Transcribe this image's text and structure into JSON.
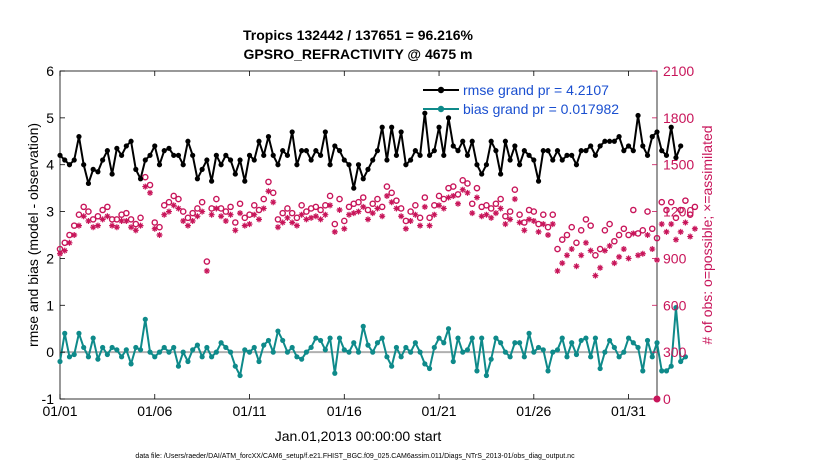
{
  "chart_data": {
    "type": "line",
    "title_line1": "Tropics 132442 / 137651 = 96.216%",
    "title_line2": "GPSRO_REFRACTIVITY @ 4675 m",
    "xlabel": "Jan.01,2013 00:00:00 start",
    "ylabel": "rmse and bias (model - observation)",
    "ylabel_right": "# of obs: o=possible; ×=assimilated",
    "xlim": [
      0,
      31.5
    ],
    "ylim": [
      -1,
      6
    ],
    "ylim_right": [
      0,
      2100
    ],
    "x_ticks": [
      0,
      5,
      10,
      15,
      20,
      25,
      30
    ],
    "x_tick_labels": [
      "01/01",
      "01/06",
      "01/11",
      "01/16",
      "01/21",
      "01/26",
      "01/31"
    ],
    "y_ticks": [
      -1,
      0,
      1,
      2,
      3,
      4,
      5,
      6
    ],
    "y_tick_labels": [
      "-1",
      "0",
      "1",
      "2",
      "3",
      "4",
      "5",
      "6"
    ],
    "y_right_ticks": [
      0,
      300,
      600,
      900,
      1200,
      1500,
      1800,
      2100
    ],
    "y_right_tick_labels": [
      "0",
      "300",
      "600",
      "900",
      "1200",
      "1500",
      "1800",
      "2100"
    ],
    "legend": {
      "rmse_label": "rmse grand pr = 4.2107",
      "bias_label": "bias grand pr = 0.017982"
    },
    "colors": {
      "rmse": "#000000",
      "bias": "#0e8a8a",
      "obs": "#c8155a",
      "zero_line": "#b0b0b0",
      "legend_text": "#1a4fd0"
    },
    "series": [
      {
        "name": "rmse",
        "x_start": 0,
        "x_step": 0.25,
        "values": [
          4.2,
          4.1,
          4.0,
          4.1,
          4.6,
          4.0,
          3.6,
          3.9,
          3.85,
          4.1,
          4.3,
          3.8,
          4.35,
          4.2,
          4.4,
          4.5,
          3.9,
          3.7,
          4.1,
          4.2,
          4.4,
          4.0,
          4.3,
          4.35,
          4.2,
          4.2,
          4.0,
          4.5,
          4.2,
          3.7,
          3.9,
          4.1,
          3.65,
          4.2,
          4.0,
          4.2,
          4.1,
          3.8,
          4.1,
          3.65,
          4.2,
          4.1,
          4.5,
          4.2,
          4.6,
          4.2,
          4.0,
          4.3,
          4.2,
          4.7,
          4.0,
          4.3,
          4.3,
          4.1,
          4.3,
          4.2,
          4.7,
          4.0,
          4.4,
          4.3,
          4.1,
          4.0,
          3.5,
          4.0,
          3.7,
          3.9,
          4.1,
          4.3,
          4.8,
          4.1,
          4.8,
          4.2,
          4.7,
          4.0,
          4.1,
          4.3,
          4.2,
          5.1,
          4.2,
          4.3,
          4.8,
          4.2,
          5.0,
          4.4,
          4.3,
          4.5,
          4.2,
          4.5,
          4.0,
          3.8,
          4.0,
          4.5,
          4.3,
          3.8,
          4.5,
          4.1,
          4.4,
          4.0,
          4.3,
          4.2,
          4.1,
          3.65,
          4.3,
          4.3,
          4.1,
          4.3,
          4.1,
          4.2,
          4.2,
          4.0,
          4.3,
          4.3,
          4.4,
          4.2,
          4.4,
          4.5,
          4.5,
          4.5,
          4.6,
          4.3,
          4.4,
          4.3,
          5.05,
          4.4,
          4.2,
          4.6,
          4.7,
          4.3,
          4.2,
          4.8,
          4.15,
          4.4
        ]
      },
      {
        "name": "bias",
        "x_start": 0,
        "x_step": 0.25,
        "values": [
          -0.2,
          0.4,
          -0.1,
          -0.05,
          0.4,
          0.1,
          -0.1,
          0.3,
          -0.15,
          0.1,
          -0.05,
          0.1,
          0.05,
          -0.1,
          0.05,
          -0.25,
          0.1,
          0.05,
          0.7,
          0.0,
          -0.1,
          0.0,
          0.1,
          0.0,
          0.1,
          -0.3,
          0.0,
          -0.2,
          0.05,
          0.15,
          -0.1,
          0.1,
          -0.1,
          0.0,
          0.2,
          0.1,
          0.0,
          -0.3,
          -0.5,
          0.05,
          0.0,
          0.1,
          -0.2,
          0.15,
          0.25,
          0.0,
          0.45,
          0.25,
          0.0,
          0.1,
          -0.1,
          -0.15,
          0.0,
          0.1,
          0.3,
          0.25,
          0.05,
          0.3,
          -0.45,
          0.3,
          0.05,
          0.0,
          0.2,
          0.0,
          0.55,
          0.15,
          0.0,
          0.2,
          0.3,
          -0.1,
          -0.3,
          0.1,
          -0.1,
          0.1,
          0.0,
          0.2,
          0.0,
          -0.25,
          -0.35,
          0.1,
          0.3,
          0.2,
          0.5,
          -0.2,
          0.3,
          0.0,
          0.05,
          0.3,
          -0.4,
          0.3,
          -0.5,
          -0.15,
          0.3,
          0.2,
          0.0,
          -0.1,
          0.2,
          0.2,
          -0.1,
          0.4,
          0.0,
          0.1,
          0.05,
          -0.4,
          0.0,
          0.05,
          0.3,
          -0.1,
          0.2,
          -0.05,
          0.25,
          0.3,
          -0.1,
          0.3,
          -0.35,
          0.0,
          0.25,
          0.1,
          -0.1,
          0.0,
          0.3,
          0.2,
          0.1,
          -0.4,
          0.25,
          -0.1,
          0.2,
          -0.4,
          -0.4,
          -0.3,
          0.95,
          -0.2,
          -0.1
        ]
      }
    ],
    "obs_possible": {
      "x_start": 0,
      "x_step": 0.25,
      "values": [
        960,
        1000,
        1050,
        1110,
        1180,
        1230,
        1200,
        1150,
        1170,
        1210,
        1230,
        1150,
        1150,
        1180,
        1190,
        1150,
        1120,
        1160,
        1420,
        1370,
        1130,
        1100,
        1240,
        1260,
        1300,
        1280,
        1200,
        1160,
        1190,
        1220,
        1260,
        880,
        1220,
        1280,
        1220,
        1200,
        1230,
        1130,
        1250,
        1160,
        1180,
        1240,
        1210,
        1280,
        1390,
        1320,
        1150,
        1190,
        1220,
        1190,
        1160,
        1240,
        1200,
        1220,
        1230,
        1210,
        1240,
        1300,
        1120,
        1280,
        1140,
        1230,
        1250,
        1260,
        1290,
        1210,
        1250,
        1280,
        1230,
        1360,
        1320,
        1270,
        1220,
        1140,
        1200,
        1240,
        1160,
        1290,
        1160,
        1240,
        1300,
        1280,
        1350,
        1360,
        1310,
        1400,
        1380,
        1250,
        1350,
        1230,
        1240,
        1220,
        1250,
        1280,
        1170,
        1200,
        1340,
        1180,
        1130,
        1210,
        1200,
        1120,
        1180,
        1100,
        1180,
        960,
        1020,
        1050,
        1100,
        1000,
        1080,
        1150,
        1110,
        920,
        960,
        1080,
        1120,
        1010,
        1050,
        1090,
        1050,
        1210,
        1060,
        1080,
        1200,
        1090,
        1030,
        1260,
        1210,
        1260,
        1160,
        1210,
        1270,
        1180,
        1230
      ]
    },
    "obs_assimilated": {
      "x_start": 0,
      "x_step": 0.25,
      "values": [
        930,
        950,
        1000,
        1050,
        1110,
        1170,
        1140,
        1100,
        1110,
        1150,
        1170,
        1110,
        1100,
        1140,
        1140,
        1100,
        1080,
        1110,
        1360,
        1320,
        1090,
        1050,
        1180,
        1200,
        1240,
        1220,
        1140,
        1110,
        1140,
        1170,
        1200,
        820,
        1180,
        1220,
        1170,
        1140,
        1180,
        1080,
        1190,
        1110,
        1120,
        1180,
        1150,
        1220,
        1330,
        1260,
        1100,
        1130,
        1160,
        1130,
        1110,
        1180,
        1150,
        1160,
        1170,
        1150,
        1180,
        1240,
        1070,
        1210,
        1090,
        1180,
        1190,
        1200,
        1230,
        1150,
        1190,
        1220,
        1170,
        1300,
        1260,
        1220,
        1170,
        1090,
        1140,
        1180,
        1110,
        1230,
        1110,
        1180,
        1240,
        1220,
        1290,
        1300,
        1250,
        1340,
        1320,
        1190,
        1290,
        1170,
        1180,
        1160,
        1190,
        1220,
        1120,
        1150,
        1280,
        1130,
        1080,
        1150,
        1140,
        1070,
        1120,
        1050,
        1120,
        820,
        870,
        920,
        960,
        850,
        920,
        1000,
        950,
        790,
        840,
        950,
        980,
        870,
        910,
        960,
        900,
        1060,
        920,
        930,
        1050,
        960,
        890,
        1120,
        1070,
        1120,
        1020,
        1070,
        1130,
        1040,
        1090
      ]
    },
    "footer": "data file: /Users/raeder/DAI/ATM_forcXX/CAM6_setup/f.e21.FHIST_BGC.f09_025.CAM6assim.011/Diags_NTrS_2013-01/obs_diag_output.nc"
  }
}
